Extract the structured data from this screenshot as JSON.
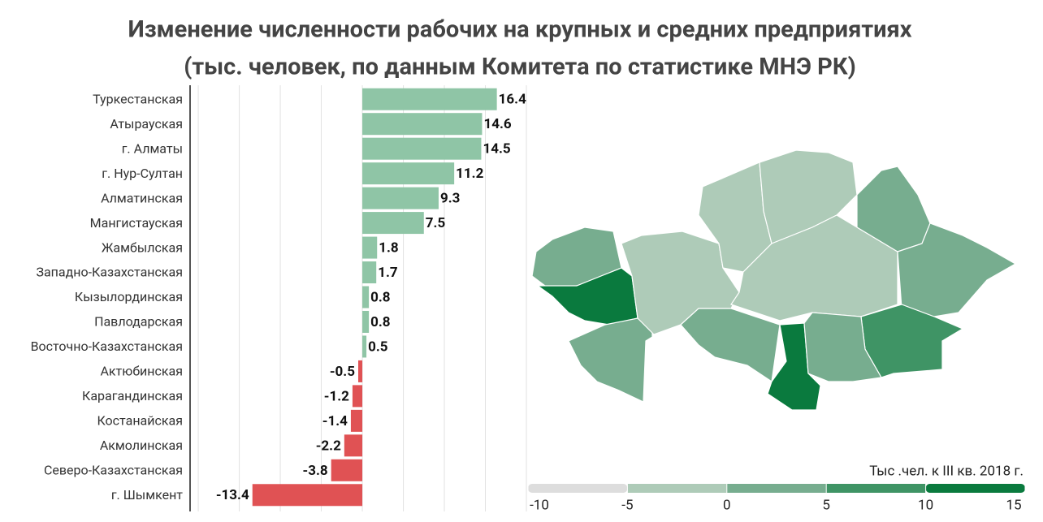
{
  "chart_data": {
    "type": "bar",
    "orientation": "horizontal",
    "title": "Изменение численности рабочих на крупных и средних предприятиях",
    "subtitle": "(тыс. человек, по данным Комитета по статистике МНЭ РК)",
    "categories": [
      "Туркестанская",
      "Атырауская",
      "г. Алматы",
      "г. Нур-Султан",
      "Алматинская",
      "Мангистауская",
      "Жамбылская",
      "Западно-Казахстанская",
      "Кызылординская",
      "Павлодарская",
      "Восточно-Казахстанская",
      "Актюбинская",
      "Карагандинская",
      "Костанайская",
      "Акмолинская",
      "Северо-Казахстанская",
      "г. Шымкент"
    ],
    "values": [
      16.4,
      14.6,
      14.5,
      11.2,
      9.3,
      7.5,
      1.8,
      1.7,
      0.8,
      0.8,
      0.5,
      -0.5,
      -1.2,
      -1.4,
      -2.2,
      -3.8,
      -13.4
    ],
    "positive_color": "#8fc5a6",
    "negative_color": "#e05254",
    "xlim": [
      -21,
      20
    ],
    "xticks": [
      -20,
      -15,
      -10,
      -5,
      0,
      5,
      10,
      15,
      20
    ],
    "grid": true,
    "map_legend": {
      "title": "Тыс .чел. к III кв. 2018 г.",
      "ticks": [
        -10,
        -5,
        0,
        5,
        10,
        15
      ],
      "colors": [
        "#dddddd",
        "#aecbb8",
        "#77ad8f",
        "#3f9465",
        "#0a7a3e"
      ]
    }
  }
}
